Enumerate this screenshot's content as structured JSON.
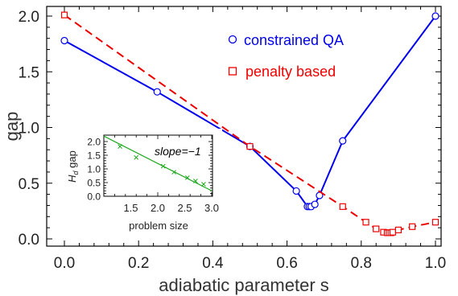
{
  "chart_data": [
    {
      "type": "line",
      "xlabel": "adiabatic parameter s",
      "ylabel": "gap",
      "xlim": [
        0,
        1
      ],
      "ylim": [
        0,
        2.05
      ],
      "xticks": [
        "0.0",
        "0.2",
        "0.4",
        "0.6",
        "0.8",
        "1.0"
      ],
      "yticks": [
        "0.0",
        "0.5",
        "1.0",
        "1.5",
        "2.0"
      ],
      "grid": false,
      "legend_position": "top-right",
      "series": [
        {
          "name": "constrained QA",
          "color": "#0000ee",
          "marker": "circle",
          "line": "solid",
          "x": [
            0.0,
            0.25,
            0.5,
            0.625,
            0.655,
            0.66,
            0.665,
            0.675,
            0.6875,
            0.75,
            1.0
          ],
          "y": [
            1.78,
            1.32,
            0.83,
            0.43,
            0.29,
            0.29,
            0.29,
            0.31,
            0.39,
            0.88,
            2.0
          ]
        },
        {
          "name": "penalty based",
          "color": "#ee0000",
          "marker": "square",
          "line": "dashed",
          "x": [
            0.0,
            0.5,
            0.75,
            0.8125,
            0.84,
            0.86,
            0.87,
            0.875,
            0.88,
            0.885,
            0.9,
            0.9375,
            1.0
          ],
          "y": [
            2.01,
            0.83,
            0.29,
            0.15,
            0.09,
            0.06,
            0.055,
            0.055,
            0.055,
            0.06,
            0.08,
            0.11,
            0.15
          ]
        }
      ]
    },
    {
      "type": "scatter",
      "xlabel": "problem size",
      "ylabel": "H_d gap",
      "ylabel_main": "H",
      "ylabel_sub": "d",
      "ylabel_rest": " gap",
      "annotation": "slope=−1",
      "xlim": [
        1.0,
        3.0
      ],
      "ylim": [
        0,
        2.2
      ],
      "xticks": [
        "1.5",
        "2.0",
        "2.5",
        "3.0"
      ],
      "yticks": [
        "0.0",
        "0.5",
        "1.0",
        "1.5",
        "2.0"
      ],
      "series": [
        {
          "color": "#22aa22",
          "marker": "x",
          "x": [
            1.3,
            1.6,
            2.1,
            2.3,
            2.55,
            2.7,
            2.85
          ],
          "y": [
            1.82,
            1.42,
            1.1,
            0.88,
            0.68,
            0.56,
            0.44
          ],
          "fit_line": {
            "x": [
              1.0,
              3.0
            ],
            "y": [
              2.2,
              0.2
            ]
          }
        }
      ]
    }
  ]
}
